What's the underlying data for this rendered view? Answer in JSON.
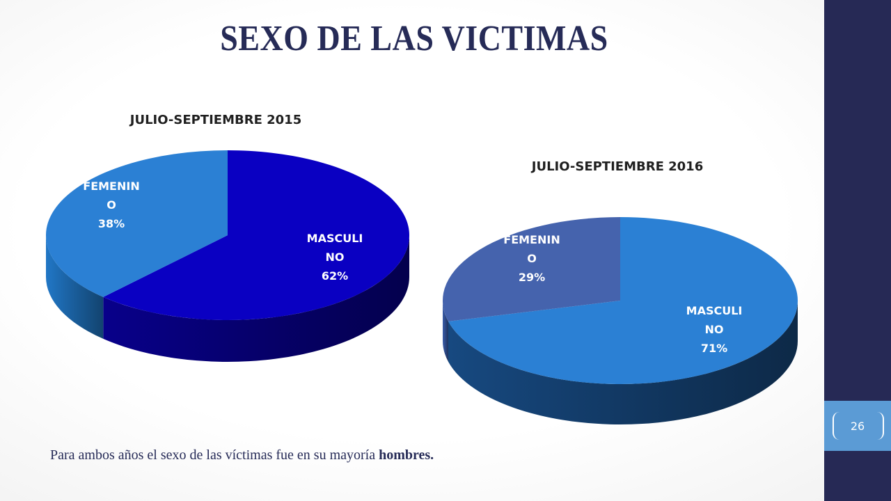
{
  "slide": {
    "title": "SEXO DE LAS VICTIMAS",
    "footnote_prefix": "Para ambos años el sexo de las víctimas fue en su mayoría ",
    "footnote_bold": "hombres.",
    "page_number": "26"
  },
  "chart_data": [
    {
      "type": "pie",
      "title": "JULIO-SEPTIEMBRE 2015",
      "slices": [
        {
          "label": [
            "MASCULI",
            "NO",
            "62%"
          ],
          "value": 62,
          "color": "#0a00c2",
          "side_color": "#06006e"
        },
        {
          "label": [
            "FEMENIN",
            "O",
            "38%"
          ],
          "value": 38,
          "color": "#2b80d4",
          "side_color": "#1a5f9e"
        }
      ]
    },
    {
      "type": "pie",
      "title": "JULIO-SEPTIEMBRE 2016",
      "slices": [
        {
          "label": [
            "MASCULI",
            "NO",
            "71%"
          ],
          "value": 71,
          "color": "#2b80d4",
          "side_color": "#123a66"
        },
        {
          "label": [
            "FEMENIN",
            "O",
            "29%"
          ],
          "value": 29,
          "color": "#4563ad",
          "side_color": "#2e4a88"
        }
      ]
    }
  ],
  "colors": {
    "sidebar": "#262955",
    "accent": "#5b9bd5",
    "title": "#262b57"
  }
}
